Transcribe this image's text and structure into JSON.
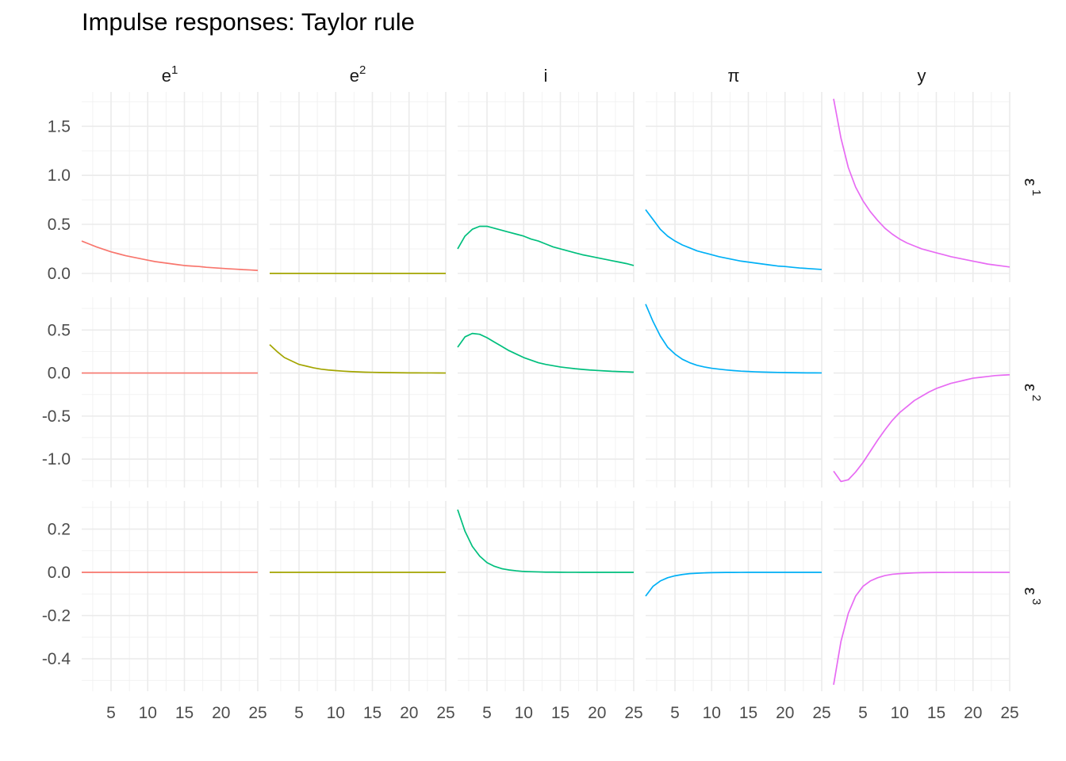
{
  "title": "Impulse responses: Taylor rule",
  "chart_data": {
    "type": "line",
    "title": "Impulse responses: Taylor rule",
    "xlabel": "",
    "ylabel": "",
    "legend": "none",
    "grid": true,
    "x_range": [
      1,
      25
    ],
    "x_ticks": [
      5,
      10,
      15,
      20,
      25
    ],
    "columns": [
      {
        "label": "e",
        "sup": "1",
        "color": "#F8766D"
      },
      {
        "label": "e",
        "sup": "2",
        "color": "#A3A500"
      },
      {
        "label": "i",
        "sup": "",
        "color": "#00BF7D"
      },
      {
        "label": "π",
        "sup": "",
        "color": "#00B0F6"
      },
      {
        "label": "y",
        "sup": "",
        "color": "#E76BF3"
      }
    ],
    "rows": [
      {
        "label": "ε",
        "sup": "1",
        "ylim": [
          -0.09,
          1.85
        ],
        "y_ticks": [
          0.0,
          0.5,
          1.0,
          1.5
        ],
        "y_tick_labels": [
          "0.0",
          "0.5",
          "1.0",
          "1.5"
        ],
        "series": [
          [
            0.33,
            0.3,
            0.27,
            0.245,
            0.22,
            0.2,
            0.18,
            0.165,
            0.15,
            0.135,
            0.12,
            0.11,
            0.1,
            0.09,
            0.08,
            0.075,
            0.07,
            0.062,
            0.057,
            0.052,
            0.047,
            0.043,
            0.038,
            0.035,
            0.03
          ],
          [
            0,
            0,
            0,
            0,
            0,
            0,
            0,
            0,
            0,
            0,
            0,
            0,
            0,
            0,
            0,
            0,
            0,
            0,
            0,
            0,
            0,
            0,
            0,
            0,
            0
          ],
          [
            0.25,
            0.38,
            0.45,
            0.48,
            0.48,
            0.46,
            0.44,
            0.42,
            0.4,
            0.38,
            0.35,
            0.33,
            0.3,
            0.27,
            0.25,
            0.23,
            0.21,
            0.19,
            0.175,
            0.16,
            0.145,
            0.13,
            0.115,
            0.1,
            0.08
          ],
          [
            0.65,
            0.55,
            0.45,
            0.38,
            0.33,
            0.29,
            0.26,
            0.23,
            0.21,
            0.19,
            0.17,
            0.155,
            0.14,
            0.125,
            0.115,
            0.105,
            0.095,
            0.085,
            0.075,
            0.07,
            0.062,
            0.055,
            0.05,
            0.045,
            0.04
          ],
          [
            1.78,
            1.38,
            1.08,
            0.88,
            0.74,
            0.63,
            0.54,
            0.46,
            0.4,
            0.35,
            0.31,
            0.28,
            0.25,
            0.23,
            0.21,
            0.19,
            0.17,
            0.155,
            0.14,
            0.125,
            0.11,
            0.095,
            0.085,
            0.075,
            0.065
          ]
        ]
      },
      {
        "label": "ε",
        "sup": "2",
        "ylim": [
          -1.33,
          0.88
        ],
        "y_ticks": [
          -1.0,
          -0.5,
          0.0,
          0.5
        ],
        "y_tick_labels": [
          "-1.0",
          "-0.5",
          "0.0",
          "0.5"
        ],
        "series": [
          [
            0,
            0,
            0,
            0,
            0,
            0,
            0,
            0,
            0,
            0,
            0,
            0,
            0,
            0,
            0,
            0,
            0,
            0,
            0,
            0,
            0,
            0,
            0,
            0,
            0
          ],
          [
            0.33,
            0.25,
            0.18,
            0.14,
            0.1,
            0.08,
            0.06,
            0.045,
            0.035,
            0.028,
            0.022,
            0.017,
            0.013,
            0.01,
            0.008,
            0.006,
            0.005,
            0.004,
            0.003,
            0.002,
            0.0015,
            0.001,
            0.001,
            0.0005,
            0.0
          ],
          [
            0.3,
            0.42,
            0.46,
            0.45,
            0.41,
            0.36,
            0.31,
            0.26,
            0.22,
            0.18,
            0.15,
            0.12,
            0.1,
            0.085,
            0.07,
            0.06,
            0.05,
            0.042,
            0.035,
            0.03,
            0.025,
            0.02,
            0.017,
            0.014,
            0.01
          ],
          [
            0.8,
            0.6,
            0.43,
            0.3,
            0.22,
            0.16,
            0.12,
            0.09,
            0.07,
            0.055,
            0.045,
            0.036,
            0.028,
            0.022,
            0.018,
            0.014,
            0.011,
            0.009,
            0.007,
            0.005,
            0.004,
            0.003,
            0.002,
            0.0015,
            0.001
          ],
          [
            -1.14,
            -1.26,
            -1.24,
            -1.15,
            -1.04,
            -0.91,
            -0.78,
            -0.66,
            -0.55,
            -0.46,
            -0.39,
            -0.32,
            -0.27,
            -0.22,
            -0.18,
            -0.15,
            -0.12,
            -0.1,
            -0.08,
            -0.06,
            -0.05,
            -0.04,
            -0.03,
            -0.025,
            -0.02
          ]
        ]
      },
      {
        "label": "ε",
        "sup": "3",
        "ylim": [
          -0.55,
          0.33
        ],
        "y_ticks": [
          -0.4,
          -0.2,
          0.0,
          0.2
        ],
        "y_tick_labels": [
          "-0.4",
          "-0.2",
          "0.0",
          "0.2"
        ],
        "series": [
          [
            0,
            0,
            0,
            0,
            0,
            0,
            0,
            0,
            0,
            0,
            0,
            0,
            0,
            0,
            0,
            0,
            0,
            0,
            0,
            0,
            0,
            0,
            0,
            0,
            0
          ],
          [
            0,
            0,
            0,
            0,
            0,
            0,
            0,
            0,
            0,
            0,
            0,
            0,
            0,
            0,
            0,
            0,
            0,
            0,
            0,
            0,
            0,
            0,
            0,
            0,
            0
          ],
          [
            0.29,
            0.19,
            0.12,
            0.075,
            0.045,
            0.028,
            0.017,
            0.011,
            0.007,
            0.004,
            0.003,
            0.002,
            0.001,
            0.0008,
            0.0005,
            0.0003,
            0.0002,
            0.0001,
            0,
            0,
            0,
            0,
            0,
            0,
            0
          ],
          [
            -0.11,
            -0.065,
            -0.04,
            -0.025,
            -0.016,
            -0.01,
            -0.006,
            -0.004,
            -0.0025,
            -0.0015,
            -0.001,
            -0.0006,
            -0.0004,
            -0.0002,
            -0.0001,
            0,
            0,
            0,
            0,
            0,
            0,
            0,
            0,
            0,
            0
          ],
          [
            -0.52,
            -0.32,
            -0.19,
            -0.11,
            -0.065,
            -0.04,
            -0.025,
            -0.015,
            -0.009,
            -0.006,
            -0.004,
            -0.0025,
            -0.0015,
            -0.001,
            -0.0006,
            -0.0004,
            -0.0002,
            -0.0001,
            0,
            0,
            0,
            0,
            0,
            0,
            0
          ]
        ]
      }
    ]
  }
}
